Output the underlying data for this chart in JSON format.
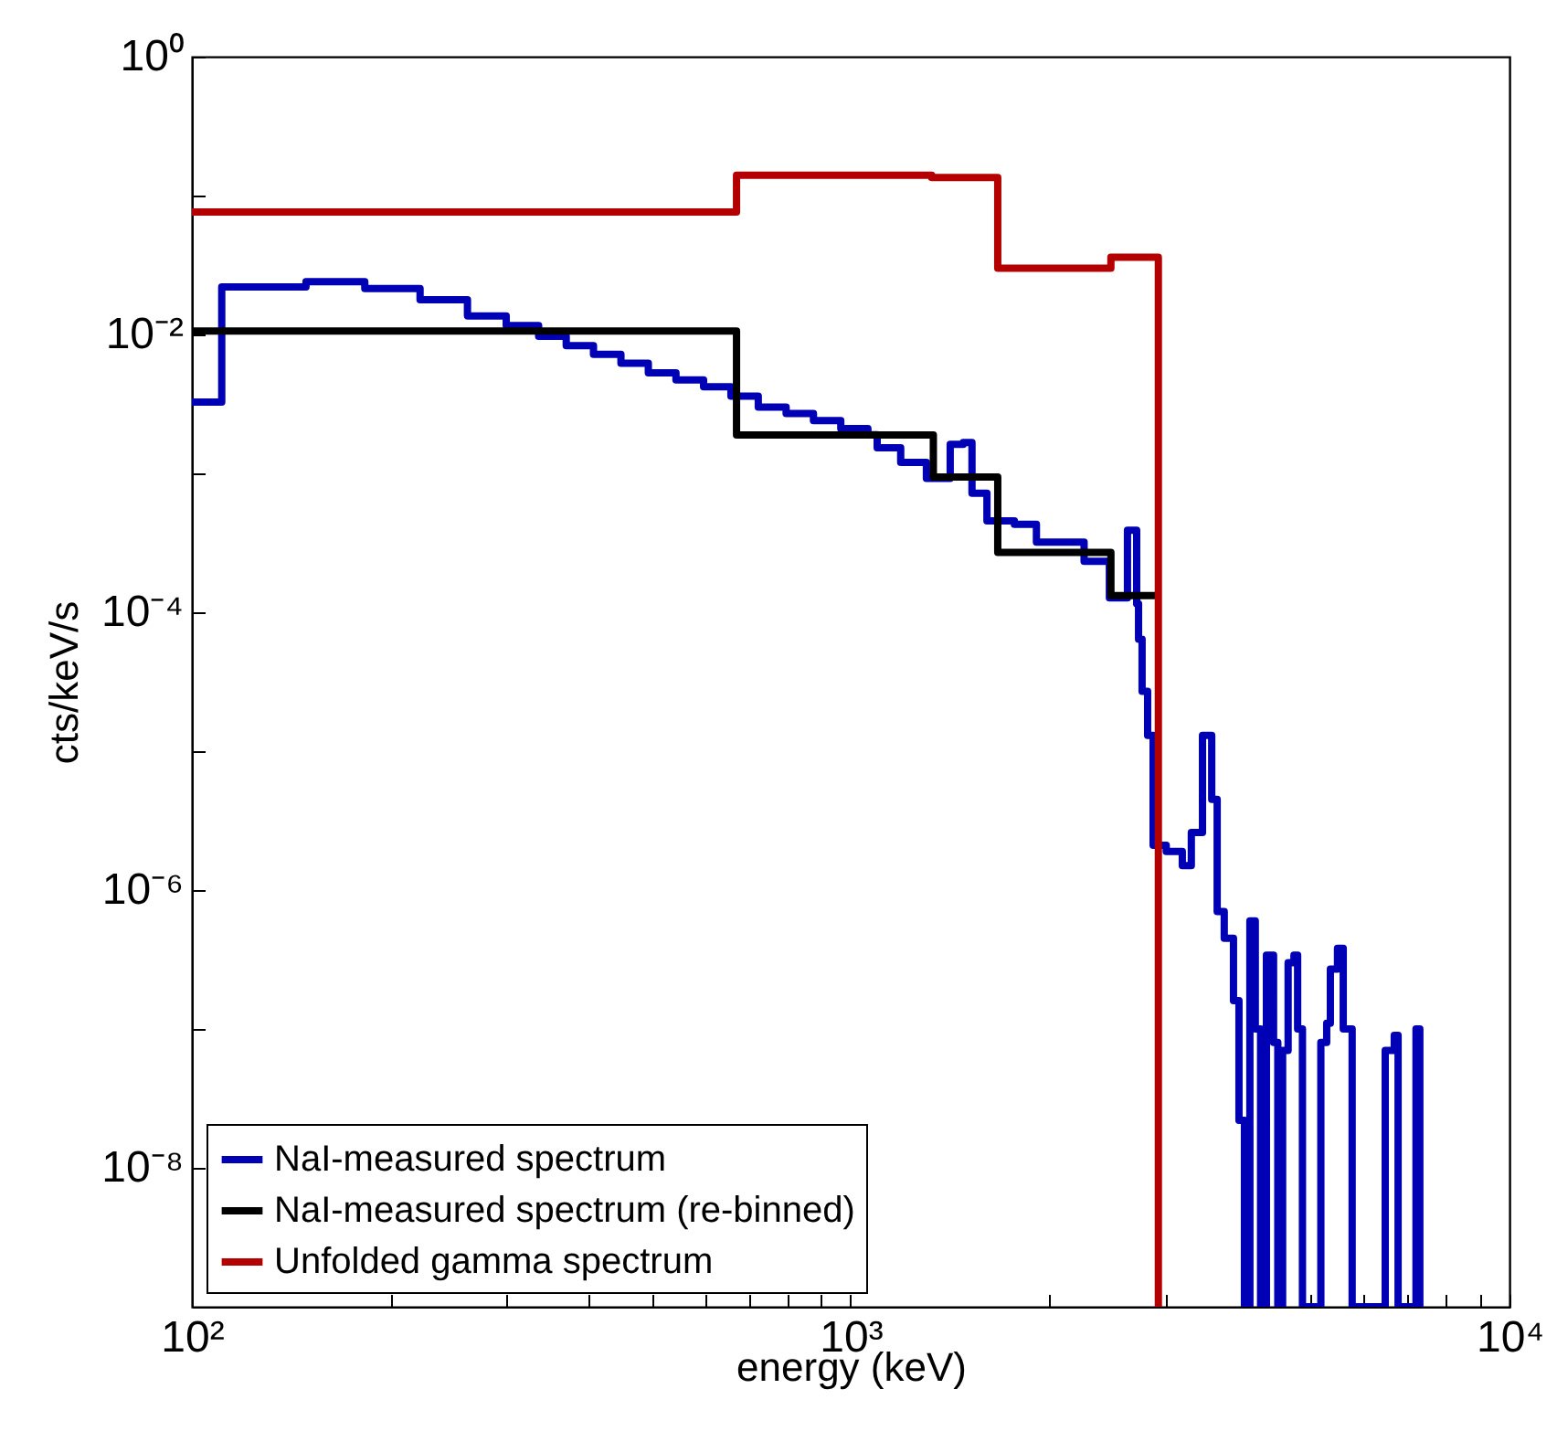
{
  "chart_data": {
    "type": "step",
    "xlabel": "energy (keV)",
    "ylabel": "cts/keV/s",
    "log": "xy",
    "grid": false,
    "legend": "bottom left",
    "xlim": [
      100,
      10000
    ],
    "ylim": [
      1e-09,
      1
    ],
    "xticks": [
      {
        "value": 100,
        "label": "10²"
      },
      {
        "value": 200,
        "label": null
      },
      {
        "value": 300,
        "label": null
      },
      {
        "value": 400,
        "label": null
      },
      {
        "value": 500,
        "label": null
      },
      {
        "value": 600,
        "label": null
      },
      {
        "value": 700,
        "label": null
      },
      {
        "value": 800,
        "label": null
      },
      {
        "value": 900,
        "label": null
      },
      {
        "value": 1000,
        "label": "10³"
      },
      {
        "value": 2000,
        "label": null
      },
      {
        "value": 3000,
        "label": null
      },
      {
        "value": 4000,
        "label": null
      },
      {
        "value": 5000,
        "label": null
      },
      {
        "value": 6000,
        "label": null
      },
      {
        "value": 7000,
        "label": null
      },
      {
        "value": 8000,
        "label": null
      },
      {
        "value": 9000,
        "label": null
      },
      {
        "value": 10000,
        "label": "10⁴"
      }
    ],
    "yticks": [
      {
        "value": 1e-09,
        "label": null
      },
      {
        "value": 1e-08,
        "label": "10⁻⁸"
      },
      {
        "value": 1e-07,
        "label": null
      },
      {
        "value": 1e-06,
        "label": "10⁻⁶"
      },
      {
        "value": 1e-05,
        "label": null
      },
      {
        "value": 0.0001,
        "label": "10⁻⁴"
      },
      {
        "value": 0.001,
        "label": null
      },
      {
        "value": 0.01,
        "label": "10⁻²"
      },
      {
        "value": 0.1,
        "label": null
      },
      {
        "value": 1,
        "label": "10⁰"
      }
    ],
    "series": [
      {
        "name": "NaI-measured spectrum",
        "color": "#0000b4",
        "x": [
          100,
          111,
          149,
          183,
          222,
          262,
          300,
          336,
          370,
          407,
          448,
          493,
          543,
          598,
          658,
          724,
          798,
          878,
          966,
          1062,
          1097,
          1191,
          1303,
          1416,
          1482,
          1528,
          1610,
          1772,
          1914,
          2080,
          2261,
          2470,
          2631,
          2717,
          2735,
          2769,
          2823,
          2878,
          3013,
          3187,
          3289,
          3420,
          3532,
          3600,
          3690,
          3811,
          3885,
          3960,
          4036,
          4113,
          4190,
          4276,
          4384,
          4450,
          4525,
          4613,
          4708,
          4769,
          4850,
          5172,
          5279,
          5347,
          5482,
          5593,
          5770,
          6477,
          6685,
          6775,
          7213,
          7310
        ],
        "values": [
          0.00326,
          0.022,
          0.024,
          0.0214,
          0.0178,
          0.0136,
          0.0116,
          0.0097,
          0.0083,
          0.0072,
          0.0062,
          0.0053,
          0.0047,
          0.0042,
          0.0036,
          0.003,
          0.0027,
          0.0024,
          0.0021,
          0.0019,
          0.00153,
          0.0012,
          0.00092,
          0.00162,
          0.00167,
          0.00072,
          0.000455,
          0.00043,
          0.00032,
          0.00032,
          0.000233,
          0.000127,
          0.00039,
          0.000115,
          6.4e-05,
          2.7e-05,
          1.3e-05,
          2.1e-06,
          1.9e-06,
          1.5e-06,
          2.6e-06,
          1.3e-05,
          4.5e-06,
          7e-07,
          4.5e-07,
          1.6e-07,
          2.2e-08,
          1e-09,
          6e-07,
          1e-07,
          1e-09,
          3.4e-07,
          8e-08,
          1e-09,
          7e-08,
          3e-07,
          3.4e-07,
          1e-07,
          1e-09,
          8e-08,
          1.1e-07,
          2.7e-07,
          3.8e-07,
          1e-07,
          1e-09,
          7e-08,
          9e-08,
          1e-09,
          1e-07,
          1e-09
        ]
      },
      {
        "name": "NaI-measured spectrum (re-binned)",
        "color": "#000000",
        "x": [
          100,
          671,
          1335,
          1672,
          2483,
          2931
        ],
        "values": [
          0.0106,
          0.00189,
          0.00094,
          0.00027,
          0.000132,
          0.000132
        ]
      },
      {
        "name": "Unfolded gamma spectrum",
        "color": "#b40000",
        "x": [
          100,
          671,
          1327,
          1672,
          2483,
          2931
        ],
        "values": [
          0.076,
          0.14,
          0.135,
          0.03,
          0.036,
          1e-09
        ]
      }
    ]
  }
}
